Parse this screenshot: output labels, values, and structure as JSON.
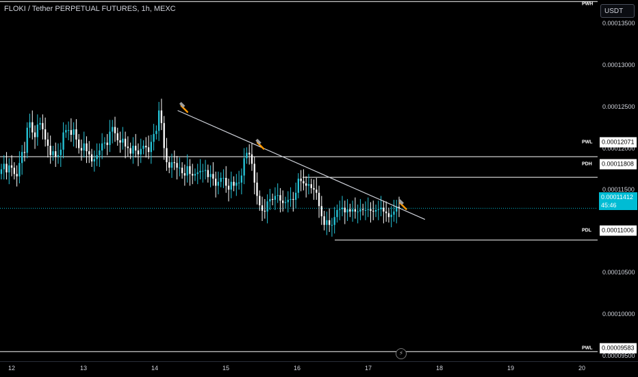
{
  "header": {
    "title": "FLOKI / Tether PERPETUAL FUTURES, 1h, MEXC"
  },
  "currency_button": {
    "label": "USDT"
  },
  "price_axis": {
    "ticks": [
      "0.00013500",
      "0.00013000",
      "0.00012500",
      "0.00012000",
      "0.00011500",
      "0.00010500",
      "0.00010000",
      "0.00009500"
    ]
  },
  "levels": [
    {
      "tag": "PWH",
      "price": ""
    },
    {
      "tag": "PWL",
      "price": "0.00012071"
    },
    {
      "tag": "PDH",
      "price": "0.00011808"
    },
    {
      "tag": "PDL",
      "price": "0.00011006"
    },
    {
      "tag": "PWL",
      "price": "0.00009583"
    }
  ],
  "current_price": {
    "price": "0.00011412",
    "countdown": "45:46"
  },
  "time_axis": {
    "labels": [
      "12",
      "13",
      "14",
      "15",
      "16",
      "17",
      "18",
      "19",
      "20"
    ]
  },
  "colors": {
    "up": "#26c6da",
    "down": "#ffffff",
    "background": "#000000",
    "accent": "#00bcd4",
    "hammer": "#ff9800"
  },
  "icons": {
    "annotation": "hammer-icon",
    "flash": "lightning-icon"
  },
  "chart_data": {
    "type": "candlestick",
    "title": "FLOKI / Tether PERPETUAL FUTURES, 1h, MEXC",
    "x_labels": [
      "12",
      "13",
      "14",
      "15",
      "16",
      "17",
      "18",
      "19",
      "20"
    ],
    "ylim": [
      9.46e-05,
      0.0001407
    ],
    "horizontal_levels": [
      {
        "name": "PWH",
        "value": 0.0001405
      },
      {
        "name": "PWL",
        "value": 0.00012071
      },
      {
        "name": "PDH",
        "value": 0.00011808
      },
      {
        "name": "PDL",
        "value": 0.00011006
      },
      {
        "name": "PWL",
        "value": 9.583e-05
      }
    ],
    "current_price": 0.00011412,
    "trendline": {
      "from": {
        "day": 14.33,
        "price": 0.0001266
      },
      "to": {
        "day": 17.8,
        "price": 0.0001127
      }
    },
    "annotations": [
      {
        "type": "hammer",
        "day": 14.38,
        "price": 0.0001272
      },
      {
        "type": "hammer",
        "day": 15.45,
        "price": 0.0001225
      },
      {
        "type": "hammer",
        "day": 17.45,
        "price": 0.0001148
      }
    ],
    "candles_close": [
      0.0001191,
      0.0001198,
      0.0001187,
      0.0001196,
      0.0001193,
      0.0001185,
      0.0001182,
      0.0001199,
      0.0001213,
      0.0001212,
      0.0001244,
      0.0001251,
      0.0001238,
      0.0001232,
      0.0001248,
      0.000125,
      0.0001242,
      0.0001229,
      0.0001221,
      0.0001209,
      0.0001214,
      0.0001207,
      0.0001209,
      0.0001216,
      0.0001238,
      0.0001241,
      0.0001241,
      0.0001235,
      0.0001242,
      0.0001229,
      0.0001218,
      0.0001215,
      0.0001224,
      0.0001214,
      0.000121,
      0.0001201,
      0.0001204,
      0.0001209,
      0.0001215,
      0.0001224,
      0.0001225,
      0.0001222,
      0.0001239,
      0.0001245,
      0.0001237,
      0.0001228,
      0.0001225,
      0.000123,
      0.000122,
      0.0001218,
      0.0001211,
      0.0001221,
      0.0001215,
      0.000121,
      0.0001217,
      0.0001221,
      0.0001219,
      0.0001213,
      0.0001226,
      0.0001236,
      0.000124,
      0.0001266,
      0.000125,
      0.0001218,
      0.00012,
      0.0001193,
      0.00012,
      0.0001199,
      0.0001193,
      0.0001193,
      0.0001186,
      0.0001183,
      0.0001195,
      0.0001185,
      0.0001183,
      0.0001185,
      0.0001187,
      0.0001189,
      0.0001189,
      0.000119,
      0.0001181,
      0.0001185,
      0.0001179,
      0.000117,
      0.0001175,
      0.000118,
      0.000118,
      0.000117,
      0.0001165,
      0.0001175,
      0.000117,
      0.0001174,
      0.0001174,
      0.0001183,
      0.0001205,
      0.0001212,
      0.000121,
      0.0001198,
      0.0001174,
      0.0001157,
      0.0001145,
      0.0001138,
      0.0001137,
      0.000115,
      0.0001153,
      0.0001152,
      0.0001157,
      0.0001158,
      0.0001151,
      0.0001148,
      0.0001149,
      0.0001152,
      0.0001153,
      0.0001152,
      0.0001161,
      0.0001179,
      0.0001176,
      0.0001173,
      0.000117,
      0.0001172,
      0.0001167,
      0.0001165,
      0.0001161,
      0.0001144,
      0.0001131,
      0.000112,
      0.0001126,
      0.000112,
      0.000112,
      0.000113,
      0.0001139,
      0.000114,
      0.0001142,
      0.0001136,
      0.000114,
      0.0001137,
      0.000114,
      0.0001137,
      0.0001137,
      0.000114,
      0.0001139,
      0.0001139,
      0.000114,
      0.0001138,
      0.0001137,
      0.0001139,
      0.000114,
      0.0001142,
      0.0001137,
      0.0001135,
      0.000113,
      0.0001133,
      0.0001137,
      0.0001143,
      0.0001141
    ]
  }
}
